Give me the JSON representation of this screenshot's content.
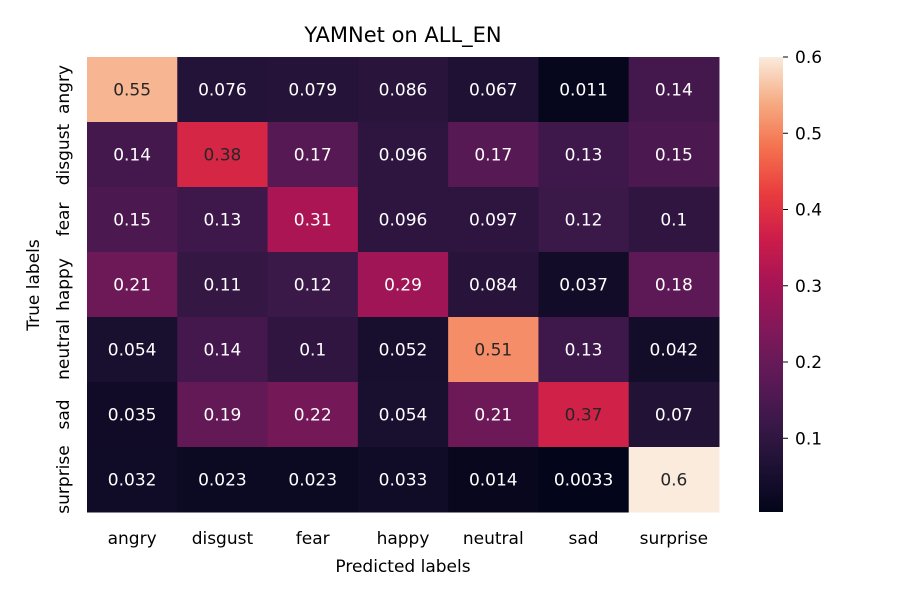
{
  "chart_data": {
    "type": "heatmap",
    "title": "YAMNet on ALL_EN",
    "xlabel": "Predicted labels",
    "ylabel": "True labels",
    "x_categories": [
      "angry",
      "disgust",
      "fear",
      "happy",
      "neutral",
      "sad",
      "surprise"
    ],
    "y_categories": [
      "angry",
      "disgust",
      "fear",
      "happy",
      "neutral",
      "sad",
      "surprise"
    ],
    "values": [
      [
        0.55,
        0.076,
        0.079,
        0.086,
        0.067,
        0.011,
        0.14
      ],
      [
        0.14,
        0.38,
        0.17,
        0.096,
        0.17,
        0.13,
        0.15
      ],
      [
        0.15,
        0.13,
        0.31,
        0.096,
        0.097,
        0.12,
        0.1
      ],
      [
        0.21,
        0.11,
        0.12,
        0.29,
        0.084,
        0.037,
        0.18
      ],
      [
        0.054,
        0.14,
        0.1,
        0.052,
        0.51,
        0.13,
        0.042
      ],
      [
        0.035,
        0.19,
        0.22,
        0.054,
        0.21,
        0.37,
        0.07
      ],
      [
        0.032,
        0.023,
        0.023,
        0.033,
        0.014,
        0.0033,
        0.6
      ]
    ],
    "value_labels": [
      [
        "0.55",
        "0.076",
        "0.079",
        "0.086",
        "0.067",
        "0.011",
        "0.14"
      ],
      [
        "0.14",
        "0.38",
        "0.17",
        "0.096",
        "0.17",
        "0.13",
        "0.15"
      ],
      [
        "0.15",
        "0.13",
        "0.31",
        "0.096",
        "0.097",
        "0.12",
        "0.1"
      ],
      [
        "0.21",
        "0.11",
        "0.12",
        "0.29",
        "0.084",
        "0.037",
        "0.18"
      ],
      [
        "0.054",
        "0.14",
        "0.1",
        "0.052",
        "0.51",
        "0.13",
        "0.042"
      ],
      [
        "0.035",
        "0.19",
        "0.22",
        "0.054",
        "0.21",
        "0.37",
        "0.07"
      ],
      [
        "0.032",
        "0.023",
        "0.023",
        "0.033",
        "0.014",
        "0.0033",
        "0.6"
      ]
    ],
    "colorbar": {
      "range": [
        0.0033,
        0.6
      ],
      "ticks": [
        0.1,
        0.2,
        0.3,
        0.4,
        0.5,
        0.6
      ],
      "tick_labels": [
        "0.1",
        "0.2",
        "0.3",
        "0.4",
        "0.5",
        "0.6"
      ],
      "colormap": "rocket"
    },
    "grid": false
  }
}
